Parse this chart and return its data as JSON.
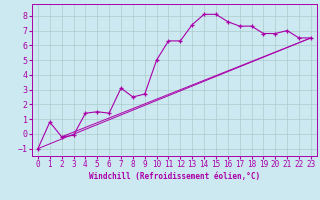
{
  "xlabel": "Windchill (Refroidissement éolien,°C)",
  "background_color": "#cce8f0",
  "grid_color": "#aacccc",
  "line_color": "#aa00aa",
  "xlim": [
    -0.5,
    23.5
  ],
  "ylim": [
    -1.5,
    8.8
  ],
  "xticks": [
    0,
    1,
    2,
    3,
    4,
    5,
    6,
    7,
    8,
    9,
    10,
    11,
    12,
    13,
    14,
    15,
    16,
    17,
    18,
    19,
    20,
    21,
    22,
    23
  ],
  "yticks": [
    -1,
    0,
    1,
    2,
    3,
    4,
    5,
    6,
    7,
    8
  ],
  "line1_x": [
    0,
    1,
    2,
    3,
    4,
    5,
    6,
    7,
    8,
    9,
    10,
    11,
    12,
    13,
    14,
    15,
    16,
    17,
    18,
    19,
    20,
    21,
    22,
    23
  ],
  "line1_y": [
    -1.0,
    0.8,
    -0.2,
    -0.1,
    1.4,
    1.5,
    1.4,
    3.1,
    2.5,
    2.7,
    5.0,
    6.3,
    6.3,
    7.4,
    8.1,
    8.1,
    7.6,
    7.3,
    7.3,
    6.8,
    6.8,
    7.0,
    6.5,
    6.5
  ],
  "line2_x": [
    0,
    23
  ],
  "line2_y": [
    -1.0,
    6.5
  ],
  "line3_x": [
    2,
    23
  ],
  "line3_y": [
    -0.2,
    6.5
  ],
  "tick_fontsize": 5.5,
  "xlabel_fontsize": 5.5
}
